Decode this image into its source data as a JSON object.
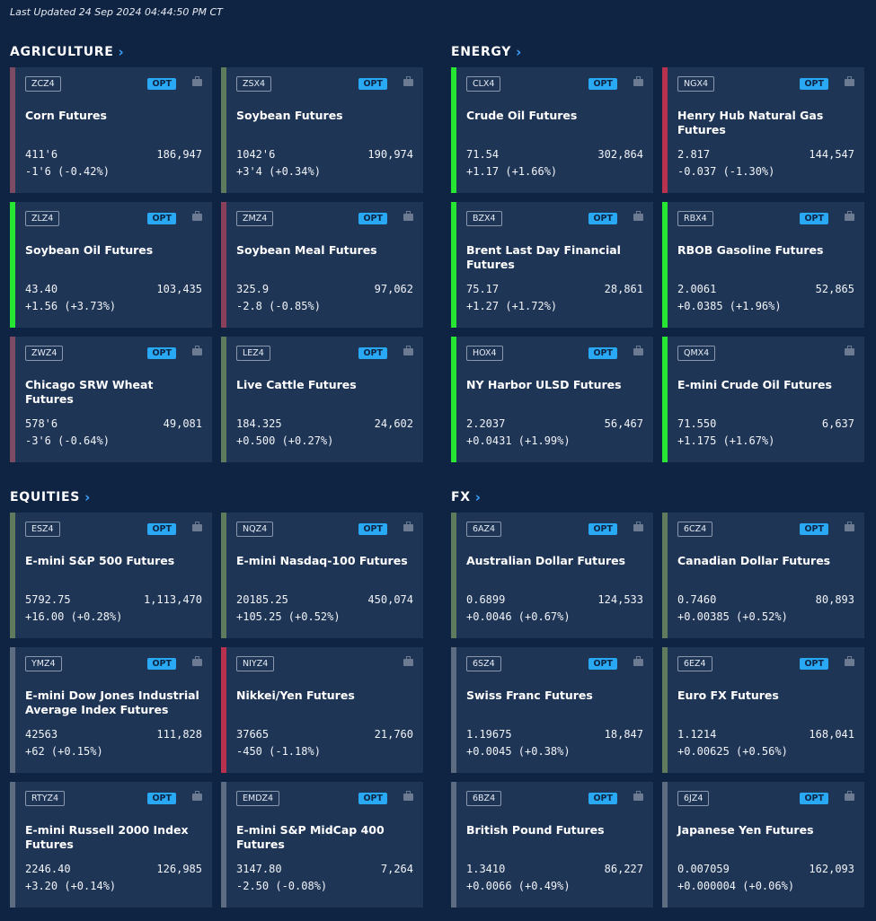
{
  "last_updated": "Last Updated 24 Sep 2024 04:44:50 PM CT",
  "colors": {
    "background": "#0f2343",
    "card": "#1f3556",
    "up": "#26e633",
    "down": "#b8324f",
    "neutral_up": "#5f7a5c",
    "neutral_down": "#7a4b63",
    "neutral": "#5d6c80",
    "opt": "#29a8f3"
  },
  "sections": {
    "agriculture": {
      "title": "AGRICULTURE",
      "cards": [
        {
          "symbol": "ZCZ4",
          "opt": "OPT",
          "name": "Corn Futures",
          "price": "411'6",
          "volume": "186,947",
          "change": "-1'6 (-0.42%)",
          "accent": "#7a4b63"
        },
        {
          "symbol": "ZSX4",
          "opt": "OPT",
          "name": "Soybean Futures",
          "price": "1042'6",
          "volume": "190,974",
          "change": "+3'4 (+0.34%)",
          "accent": "#5f7a5c"
        },
        {
          "symbol": "ZLZ4",
          "opt": "OPT",
          "name": "Soybean Oil Futures",
          "price": "43.40",
          "volume": "103,435",
          "change": "+1.56 (+3.73%)",
          "accent": "#26e633"
        },
        {
          "symbol": "ZMZ4",
          "opt": "OPT",
          "name": "Soybean Meal Futures",
          "price": "325.9",
          "volume": "97,062",
          "change": "-2.8 (-0.85%)",
          "accent": "#8a3f5a"
        },
        {
          "symbol": "ZWZ4",
          "opt": "OPT",
          "name": "Chicago SRW Wheat Futures",
          "price": "578'6",
          "volume": "49,081",
          "change": "-3'6 (-0.64%)",
          "accent": "#7a4b63"
        },
        {
          "symbol": "LEZ4",
          "opt": "OPT",
          "name": "Live Cattle Futures",
          "price": "184.325",
          "volume": "24,602",
          "change": "+0.500 (+0.27%)",
          "accent": "#5f7a5c"
        }
      ]
    },
    "energy": {
      "title": "ENERGY",
      "cards": [
        {
          "symbol": "CLX4",
          "opt": "OPT",
          "name": "Crude Oil Futures",
          "price": "71.54",
          "volume": "302,864",
          "change": "+1.17 (+1.66%)",
          "accent": "#26e633"
        },
        {
          "symbol": "NGX4",
          "opt": "OPT",
          "name": "Henry Hub Natural Gas Futures",
          "price": "2.817",
          "volume": "144,547",
          "change": "-0.037 (-1.30%)",
          "accent": "#b8324f"
        },
        {
          "symbol": "BZX4",
          "opt": "OPT",
          "name": "Brent Last Day Financial Futures",
          "price": "75.17",
          "volume": "28,861",
          "change": "+1.27 (+1.72%)",
          "accent": "#26e633"
        },
        {
          "symbol": "RBX4",
          "opt": "OPT",
          "name": "RBOB Gasoline Futures",
          "price": "2.0061",
          "volume": "52,865",
          "change": "+0.0385 (+1.96%)",
          "accent": "#26e633"
        },
        {
          "symbol": "HOX4",
          "opt": "OPT",
          "name": "NY Harbor ULSD Futures",
          "price": "2.2037",
          "volume": "56,467",
          "change": "+0.0431 (+1.99%)",
          "accent": "#26e633"
        },
        {
          "symbol": "QMX4",
          "opt": "",
          "name": "E-mini Crude Oil Futures",
          "price": "71.550",
          "volume": "6,637",
          "change": "+1.175 (+1.67%)",
          "accent": "#26e633"
        }
      ]
    },
    "equities": {
      "title": "EQUITIES",
      "cards": [
        {
          "symbol": "ESZ4",
          "opt": "OPT",
          "name": "E-mini S&P 500 Futures",
          "price": "5792.75",
          "volume": "1,113,470",
          "change": "+16.00 (+0.28%)",
          "accent": "#5f7a5c"
        },
        {
          "symbol": "NQZ4",
          "opt": "OPT",
          "name": "E-mini Nasdaq-100 Futures",
          "price": "20185.25",
          "volume": "450,074",
          "change": "+105.25 (+0.52%)",
          "accent": "#5f7a5c"
        },
        {
          "symbol": "YMZ4",
          "opt": "OPT",
          "name": "E-mini Dow Jones Industrial Average Index Futures",
          "price": "42563",
          "volume": "111,828",
          "change": "+62 (+0.15%)",
          "accent": "#5d6c80"
        },
        {
          "symbol": "NIYZ4",
          "opt": "",
          "name": "Nikkei/Yen Futures",
          "price": "37665",
          "volume": "21,760",
          "change": "-450 (-1.18%)",
          "accent": "#b8324f"
        },
        {
          "symbol": "RTYZ4",
          "opt": "OPT",
          "name": "E-mini  Russell 2000 Index Futures",
          "price": "2246.40",
          "volume": "126,985",
          "change": "+3.20 (+0.14%)",
          "accent": "#5d6c80"
        },
        {
          "symbol": "EMDZ4",
          "opt": "OPT",
          "name": "E-mini S&P MidCap 400 Futures",
          "price": "3147.80",
          "volume": "7,264",
          "change": "-2.50 (-0.08%)",
          "accent": "#5d6c80"
        }
      ]
    },
    "fx": {
      "title": "FX",
      "cards": [
        {
          "symbol": "6AZ4",
          "opt": "OPT",
          "name": "Australian Dollar Futures",
          "price": "0.6899",
          "volume": "124,533",
          "change": "+0.0046 (+0.67%)",
          "accent": "#5f7a5c"
        },
        {
          "symbol": "6CZ4",
          "opt": "OPT",
          "name": "Canadian Dollar Futures",
          "price": "0.7460",
          "volume": "80,893",
          "change": "+0.00385 (+0.52%)",
          "accent": "#5f7a5c"
        },
        {
          "symbol": "6SZ4",
          "opt": "OPT",
          "name": "Swiss Franc Futures",
          "price": "1.19675",
          "volume": "18,847",
          "change": "+0.0045 (+0.38%)",
          "accent": "#5d6c80"
        },
        {
          "symbol": "6EZ4",
          "opt": "OPT",
          "name": "Euro FX Futures",
          "price": "1.1214",
          "volume": "168,041",
          "change": "+0.00625 (+0.56%)",
          "accent": "#5f7a5c"
        },
        {
          "symbol": "6BZ4",
          "opt": "OPT",
          "name": "British Pound Futures",
          "price": "1.3410",
          "volume": "86,227",
          "change": "+0.0066 (+0.49%)",
          "accent": "#5d6c80"
        },
        {
          "symbol": "6JZ4",
          "opt": "OPT",
          "name": "Japanese Yen Futures",
          "price": "0.007059",
          "volume": "162,093",
          "change": "+0.000004 (+0.06%)",
          "accent": "#5d6c80"
        }
      ]
    }
  }
}
